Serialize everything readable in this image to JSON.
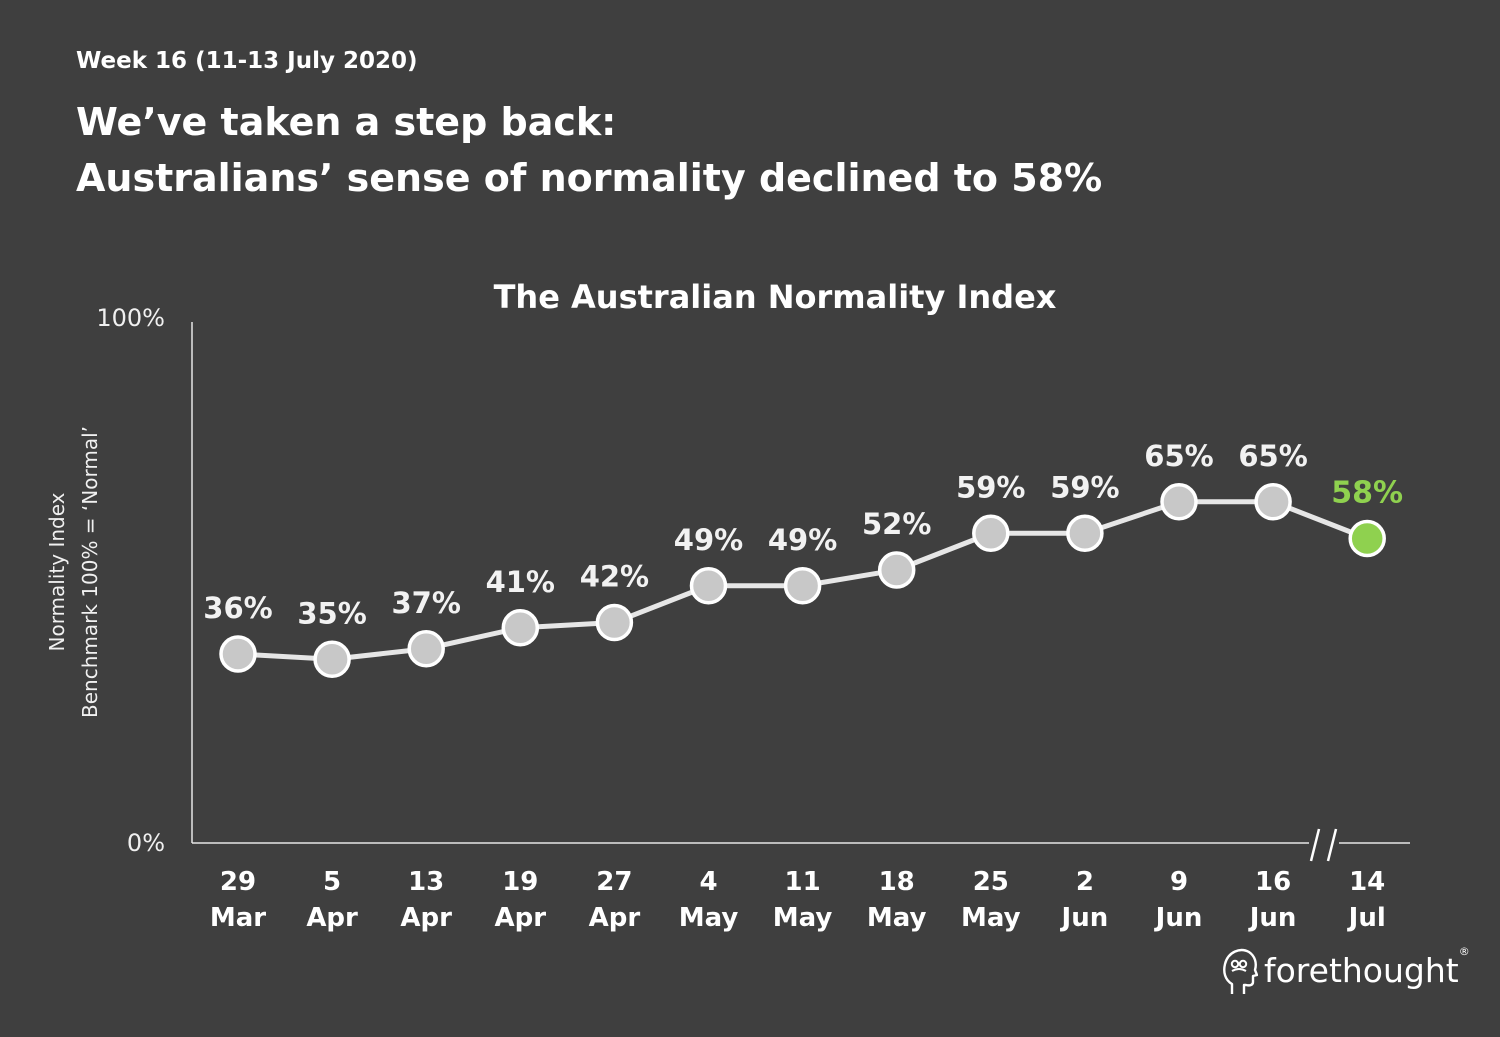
{
  "header": {
    "week": "Week 16 (11-13 July 2020)",
    "headline_line1": "We’ve taken a step back:",
    "headline_line2": "Australians’ sense of normality declined to 58%"
  },
  "logo": {
    "text": "forethought",
    "mark": "®"
  },
  "colors": {
    "background": "#3f3f3f",
    "line": "#e6e6e6",
    "point": "#c8c8c8",
    "highlight": "#8fd14f"
  },
  "chart_data": {
    "type": "line",
    "title": "The Australian Normality Index",
    "ylabel_line1": "Normality Index",
    "ylabel_line2": "Benchmark 100% = ‘Normal’",
    "ylim": [
      0,
      100
    ],
    "yticks": [
      "100%",
      "0%"
    ],
    "categories": [
      [
        "29",
        "Mar"
      ],
      [
        "5",
        "Apr"
      ],
      [
        "13",
        "Apr"
      ],
      [
        "19",
        "Apr"
      ],
      [
        "27",
        "Apr"
      ],
      [
        "4",
        "May"
      ],
      [
        "11",
        "May"
      ],
      [
        "18",
        "May"
      ],
      [
        "25",
        "May"
      ],
      [
        "2",
        "Jun"
      ],
      [
        "9",
        "Jun"
      ],
      [
        "16",
        "Jun"
      ],
      [
        "14",
        "Jul"
      ]
    ],
    "values": [
      36,
      35,
      37,
      41,
      42,
      49,
      49,
      52,
      59,
      59,
      65,
      65,
      58
    ],
    "labels": [
      "36%",
      "35%",
      "37%",
      "41%",
      "42%",
      "49%",
      "49%",
      "52%",
      "59%",
      "59%",
      "65%",
      "65%",
      "58%"
    ],
    "highlight_index": 12,
    "axis_break": "between 16 Jun and 14 Jul",
    "grid": false
  }
}
